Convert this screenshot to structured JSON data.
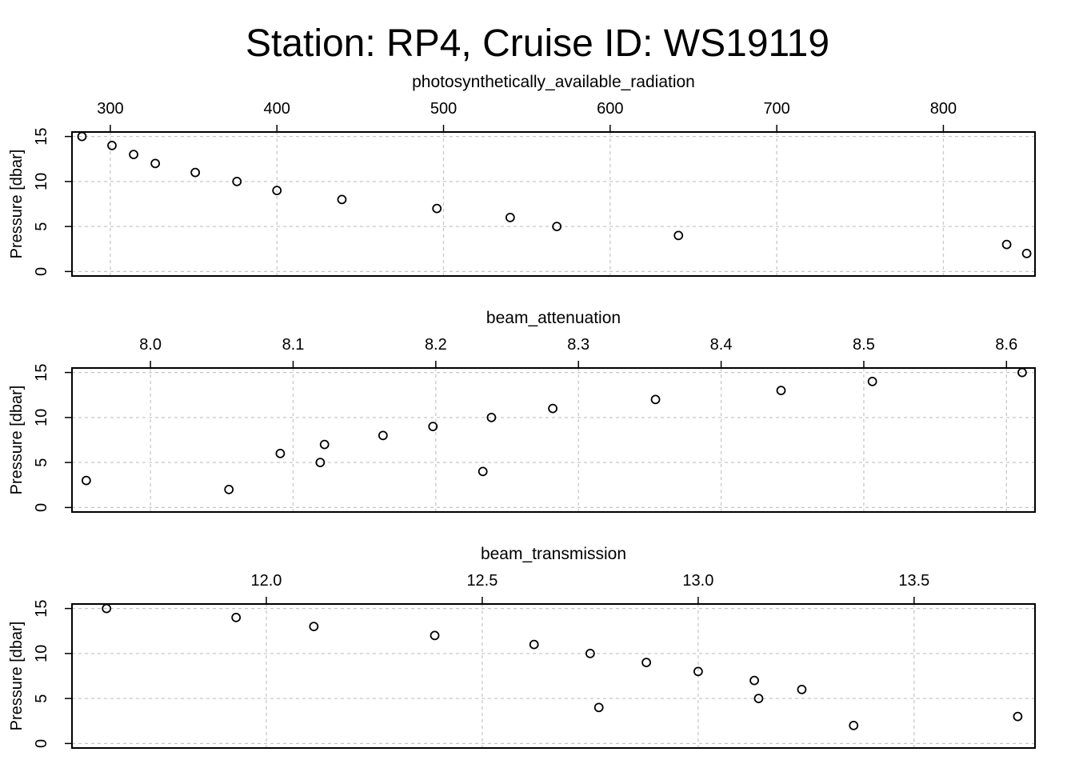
{
  "chart_data": {
    "title": "Station: RP4, Cruise ID: WS19119",
    "panels": [
      {
        "type": "scatter",
        "xlabel": "photosynthetically_available_radiation",
        "ylabel": "Pressure [dbar]",
        "xlim": [
          277,
          855
        ],
        "ylim": [
          15.5,
          -0.5
        ],
        "xticks": [
          300,
          400,
          500,
          600,
          700,
          800
        ],
        "xtick_labels": [
          "300",
          "400",
          "500",
          "600",
          "700",
          "800"
        ],
        "yticks": [
          0,
          5,
          10,
          15
        ],
        "ytick_labels": [
          "0",
          "5",
          "10",
          "15"
        ],
        "grid": true,
        "points": [
          {
            "x": 850,
            "y": 2
          },
          {
            "x": 838,
            "y": 3
          },
          {
            "x": 641,
            "y": 4
          },
          {
            "x": 568,
            "y": 5
          },
          {
            "x": 540,
            "y": 6
          },
          {
            "x": 496,
            "y": 7
          },
          {
            "x": 439,
            "y": 8
          },
          {
            "x": 400,
            "y": 9
          },
          {
            "x": 376,
            "y": 10
          },
          {
            "x": 351,
            "y": 11
          },
          {
            "x": 327,
            "y": 12
          },
          {
            "x": 314,
            "y": 13
          },
          {
            "x": 301,
            "y": 14
          },
          {
            "x": 283,
            "y": 15
          }
        ]
      },
      {
        "type": "scatter",
        "xlabel": "beam_attenuation",
        "ylabel": "Pressure [dbar]",
        "xlim": [
          7.945,
          8.62
        ],
        "ylim": [
          15.5,
          -0.5
        ],
        "xticks": [
          8.0,
          8.1,
          8.2,
          8.3,
          8.4,
          8.5,
          8.6
        ],
        "xtick_labels": [
          "8.0",
          "8.1",
          "8.2",
          "8.3",
          "8.4",
          "8.5",
          "8.6"
        ],
        "yticks": [
          0,
          5,
          10,
          15
        ],
        "ytick_labels": [
          "0",
          "5",
          "10",
          "15"
        ],
        "grid": true,
        "points": [
          {
            "x": 8.055,
            "y": 2
          },
          {
            "x": 7.955,
            "y": 3
          },
          {
            "x": 8.233,
            "y": 4
          },
          {
            "x": 8.119,
            "y": 5
          },
          {
            "x": 8.091,
            "y": 6
          },
          {
            "x": 8.122,
            "y": 7
          },
          {
            "x": 8.163,
            "y": 8
          },
          {
            "x": 8.198,
            "y": 9
          },
          {
            "x": 8.239,
            "y": 10
          },
          {
            "x": 8.282,
            "y": 11
          },
          {
            "x": 8.354,
            "y": 12
          },
          {
            "x": 8.442,
            "y": 13
          },
          {
            "x": 8.506,
            "y": 14
          },
          {
            "x": 8.611,
            "y": 15
          }
        ]
      },
      {
        "type": "scatter",
        "xlabel": "beam_transmission",
        "ylabel": "Pressure [dbar]",
        "xlim": [
          11.55,
          13.78
        ],
        "ylim": [
          15.5,
          -0.5
        ],
        "xticks": [
          12.0,
          12.5,
          13.0,
          13.5
        ],
        "xtick_labels": [
          "12.0",
          "12.5",
          "13.0",
          "13.5"
        ],
        "yticks": [
          0,
          5,
          10,
          15
        ],
        "ytick_labels": [
          "0",
          "5",
          "10",
          "15"
        ],
        "grid": true,
        "points": [
          {
            "x": 13.36,
            "y": 2
          },
          {
            "x": 13.74,
            "y": 3
          },
          {
            "x": 12.77,
            "y": 4
          },
          {
            "x": 13.14,
            "y": 5
          },
          {
            "x": 13.24,
            "y": 6
          },
          {
            "x": 13.13,
            "y": 7
          },
          {
            "x": 13.0,
            "y": 8
          },
          {
            "x": 12.88,
            "y": 9
          },
          {
            "x": 12.75,
            "y": 10
          },
          {
            "x": 12.62,
            "y": 11
          },
          {
            "x": 12.39,
            "y": 12
          },
          {
            "x": 12.11,
            "y": 13
          },
          {
            "x": 11.93,
            "y": 14
          },
          {
            "x": 11.63,
            "y": 15
          }
        ]
      }
    ]
  }
}
